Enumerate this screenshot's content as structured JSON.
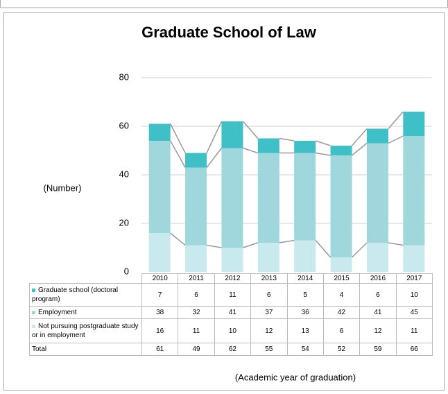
{
  "chart_data": {
    "type": "stacked_bar",
    "title": "Graduate School of Law",
    "y_label": "(Number)",
    "x_label": "(Academic year of graduation)",
    "categories": [
      "2010",
      "2011",
      "2012",
      "2013",
      "2014",
      "2015",
      "2016",
      "2017"
    ],
    "series": [
      {
        "name": "Graduate school (doctoral program)",
        "color": "#3fbfc6",
        "values": [
          7,
          6,
          11,
          6,
          5,
          4,
          6,
          10
        ]
      },
      {
        "name": "Employment",
        "color": "#9fd7dc",
        "values": [
          38,
          32,
          41,
          37,
          36,
          42,
          41,
          45
        ]
      },
      {
        "name": "Not pursuing postgraduate study or in employment",
        "color": "#c8e9ed",
        "values": [
          16,
          11,
          10,
          12,
          13,
          6,
          12,
          11
        ]
      }
    ],
    "total_label": "Total",
    "totals": [
      61,
      49,
      62,
      55,
      54,
      52,
      59,
      66
    ],
    "ylim": [
      0,
      80
    ],
    "yticks": [
      0,
      20,
      40,
      60,
      80
    ],
    "grid": true
  }
}
